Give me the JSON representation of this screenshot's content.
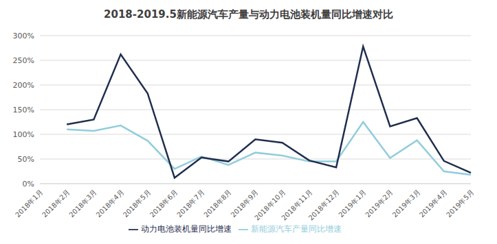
{
  "chart_data": {
    "type": "line",
    "title": "2018-2019.5新能源汽车产量与动力电池装机量同比增速对比",
    "categories": [
      "2018年1月",
      "2018年2月",
      "2018年3月",
      "2018年4月",
      "2018年5月",
      "2018年6月",
      "2018年7月",
      "2018年8月",
      "2018年9月",
      "2018年10月",
      "2018年11月",
      "2018年12月",
      "2019年1月",
      "2019年2月",
      "2019年3月",
      "2019年4月",
      "2019年5月"
    ],
    "series": [
      {
        "name": "新能源汽车产量同比增速",
        "color": "#92cddc",
        "values": [
          null,
          110,
          107,
          118,
          87,
          30,
          55,
          38,
          63,
          57,
          45,
          45,
          125,
          52,
          88,
          25,
          18
        ]
      },
      {
        "name": "动力电池装机量同比增速",
        "color": "#1f2d4e",
        "values": [
          null,
          120,
          130,
          262,
          183,
          12,
          53,
          45,
          90,
          83,
          47,
          33,
          278,
          116,
          133,
          46,
          22
        ]
      }
    ],
    "ylim": [
      0,
      300
    ],
    "yticks": [
      {
        "value": 0,
        "label": "0%"
      },
      {
        "value": 50,
        "label": "50%"
      },
      {
        "value": 100,
        "label": "100%"
      },
      {
        "value": 150,
        "label": "150%"
      },
      {
        "value": 200,
        "label": "200%"
      },
      {
        "value": 250,
        "label": "250%"
      },
      {
        "value": 300,
        "label": "300%"
      }
    ],
    "grid": true,
    "legend": "bottom"
  }
}
